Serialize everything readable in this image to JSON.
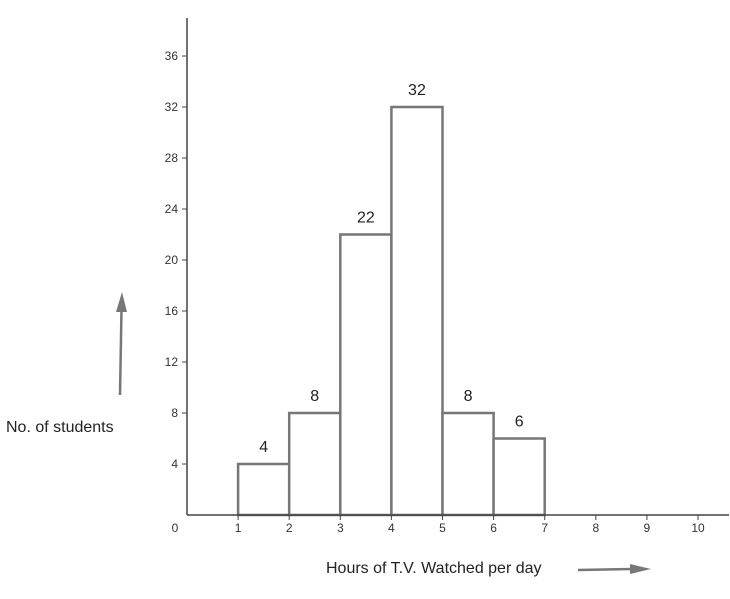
{
  "chart_data": {
    "type": "bar",
    "xlabel": "Hours of T.V. Watched per day",
    "ylabel": "No. of students",
    "x_ticks": [
      0,
      1,
      2,
      3,
      4,
      5,
      6,
      7,
      8,
      9,
      10
    ],
    "y_ticks": [
      4,
      8,
      12,
      16,
      20,
      24,
      28,
      32,
      36
    ],
    "xlim": [
      0,
      10.6
    ],
    "ylim": [
      0,
      39
    ],
    "bins": [
      {
        "from": 1,
        "to": 2,
        "value": 4,
        "label": "4"
      },
      {
        "from": 2,
        "to": 3,
        "value": 8,
        "label": "8"
      },
      {
        "from": 3,
        "to": 4,
        "value": 22,
        "label": "22"
      },
      {
        "from": 4,
        "to": 5,
        "value": 32,
        "label": "32"
      },
      {
        "from": 5,
        "to": 6,
        "value": 8,
        "label": "8"
      },
      {
        "from": 6,
        "to": 7,
        "value": 6,
        "label": "6"
      }
    ],
    "grid": false,
    "histogram": true
  },
  "colors": {
    "bar_stroke": "#777777",
    "bar_fill": "#ffffff",
    "axis": "#444444",
    "arrow": "#777777"
  }
}
